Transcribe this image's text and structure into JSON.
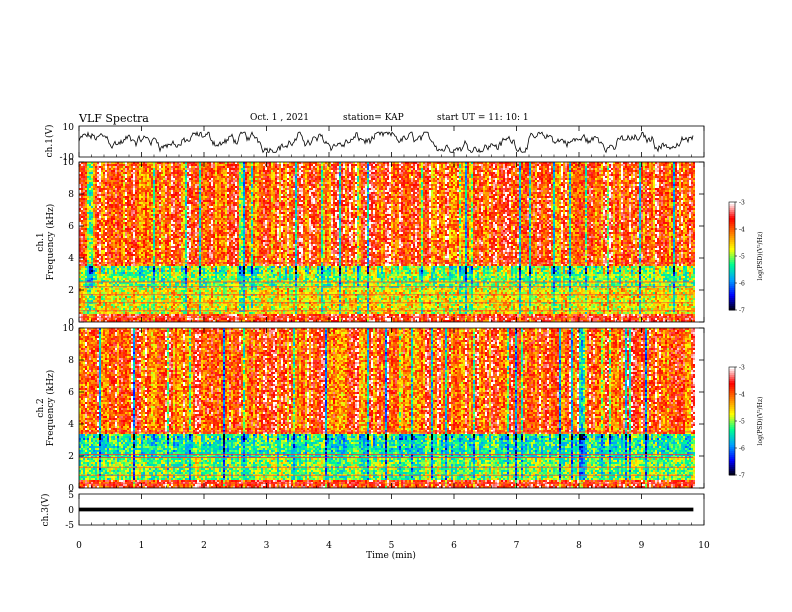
{
  "header": {
    "title": "VLF Spectra",
    "date": "Oct. 1 , 2021",
    "station": "station= KAP",
    "start": "start UT =  11: 10: 1"
  },
  "chart_data": [
    {
      "type": "line",
      "panel": "ch1-waveform",
      "ylabel": "ch.1(V)",
      "ylim": [
        -10,
        10
      ],
      "y_ticks": [
        "10",
        "-10"
      ],
      "xlim": [
        0,
        10
      ],
      "series_color": "#000000",
      "trace_band": [
        -7,
        6
      ]
    },
    {
      "type": "heatmap",
      "panel": "ch1-spectrogram",
      "ylabel": "ch.1 Frequency (kHz)",
      "ylabel_lines": [
        "ch.1",
        "Frequency (kHz)"
      ],
      "ylim": [
        0,
        10
      ],
      "y_ticks": [
        "0",
        "2",
        "4",
        "6",
        "8",
        "10"
      ],
      "xlim": [
        0,
        9.83
      ],
      "colorbar": {
        "label": "log(PSD)(V²/Hz)",
        "range": [
          -7,
          -3
        ],
        "ticks": [
          "-3",
          "-4",
          "-5",
          "-6",
          "-7"
        ]
      },
      "band_structure": [
        {
          "freq_range": [
            0,
            0.6
          ],
          "level": -3.6
        },
        {
          "freq_range": [
            0.6,
            2.2
          ],
          "level": -4.6
        },
        {
          "freq_range": [
            2.2,
            3.6
          ],
          "level": -5.0
        },
        {
          "freq_range": [
            3.6,
            10
          ],
          "level": -3.8
        }
      ],
      "line_frequencies": [
        0.3,
        0.7,
        1.2,
        1.7,
        2.2,
        2.5,
        3.7
      ]
    },
    {
      "type": "heatmap",
      "panel": "ch2-spectrogram",
      "ylabel": "ch.2 Frequency (kHz)",
      "ylabel_lines": [
        "ch.2",
        "Frequency (kHz)"
      ],
      "ylim": [
        0,
        10
      ],
      "y_ticks": [
        "0",
        "2",
        "4",
        "6",
        "8",
        "10"
      ],
      "xlim": [
        0,
        9.83
      ],
      "colorbar": {
        "label": "log(PSD)(V²/Hz)",
        "range": [
          -7,
          -3
        ],
        "ticks": [
          "-3",
          "-4",
          "-5",
          "-6",
          "-7"
        ]
      },
      "band_structure": [
        {
          "freq_range": [
            0,
            0.6
          ],
          "level": -3.6
        },
        {
          "freq_range": [
            0.6,
            2.0
          ],
          "level": -5.0
        },
        {
          "freq_range": [
            2.0,
            3.4
          ],
          "level": -5.3
        },
        {
          "freq_range": [
            3.4,
            10
          ],
          "level": -3.8
        }
      ],
      "line_frequencies": [
        0.3,
        0.8,
        1.3,
        1.9,
        2.1,
        3.5
      ]
    },
    {
      "type": "line",
      "panel": "ch3-waveform",
      "ylabel": "ch.3(V)",
      "ylim": [
        -5,
        5
      ],
      "y_ticks": [
        "5",
        "0",
        "-5"
      ],
      "xlim": [
        0,
        10
      ],
      "series_color": "#000000",
      "trace_band": [
        -0.6,
        0.6
      ],
      "trace_center": 0
    }
  ],
  "x_axis": {
    "label": "Time (min)",
    "range": [
      0,
      10
    ],
    "ticks": [
      "0",
      "1",
      "2",
      "3",
      "4",
      "5",
      "6",
      "7",
      "8",
      "9",
      "10"
    ]
  },
  "colors": {
    "frame": "#000000",
    "background": "#ffffff",
    "colormap": [
      "#000000",
      "#0000ff",
      "#00a0ff",
      "#00ff90",
      "#ffff00",
      "#ff8000",
      "#ff0000",
      "#ffffff"
    ]
  }
}
